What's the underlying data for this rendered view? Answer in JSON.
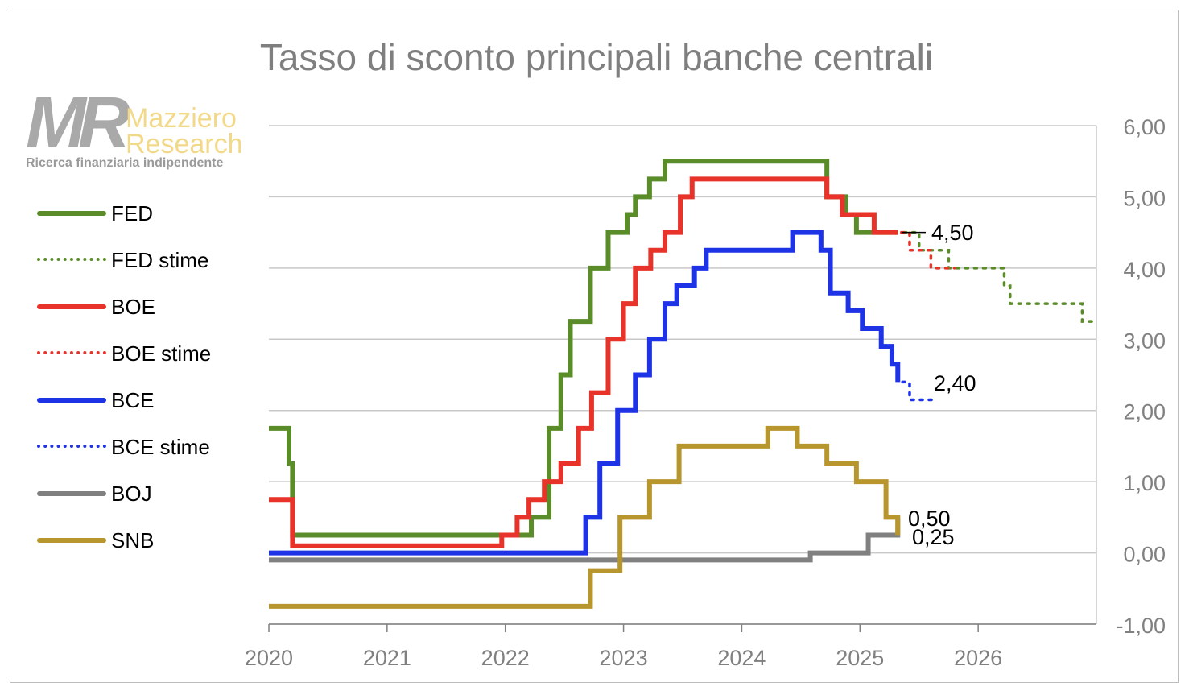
{
  "chart_data": {
    "type": "line",
    "title": "Tasso di sconto principali banche centrali",
    "xlabel": "",
    "ylabel": "",
    "xlim": [
      2020,
      2027
    ],
    "ylim": [
      -1,
      6
    ],
    "x_ticks": [
      "2020",
      "2021",
      "2022",
      "2023",
      "2024",
      "2025",
      "2026"
    ],
    "y_ticks": [
      "6,00",
      "5,00",
      "4,00",
      "3,00",
      "2,00",
      "1,00",
      "0,00",
      "-1,00"
    ],
    "y_axis_position": "right",
    "grid": "horizontal",
    "legend_position": "left",
    "series": [
      {
        "name": "FED",
        "color": "#5b8c2a",
        "style": "solid",
        "x": [
          2020.0,
          2020.17,
          2020.2,
          2022.22,
          2022.37,
          2022.47,
          2022.55,
          2022.72,
          2022.87,
          2023.03,
          2023.1,
          2023.22,
          2023.35,
          2023.57,
          2024.72,
          2024.88,
          2024.97,
          2025.32
        ],
        "y": [
          1.75,
          1.25,
          0.25,
          0.5,
          1.75,
          2.5,
          3.25,
          4.0,
          4.5,
          4.75,
          5.0,
          5.25,
          5.5,
          5.5,
          5.0,
          4.75,
          4.5,
          4.5
        ]
      },
      {
        "name": "FED stime",
        "color": "#5b8c2a",
        "style": "dotted",
        "x": [
          2025.37,
          2025.45,
          2025.5,
          2025.75,
          2025.83,
          2026.22,
          2026.27,
          2026.5,
          2026.75,
          2026.88,
          2026.98
        ],
        "y": [
          4.5,
          4.5,
          4.25,
          4.0,
          4.0,
          3.75,
          3.5,
          3.5,
          3.5,
          3.25,
          3.25
        ]
      },
      {
        "name": "BOE",
        "color": "#e8332a",
        "style": "solid",
        "x": [
          2020.0,
          2020.2,
          2020.23,
          2021.97,
          2022.1,
          2022.2,
          2022.33,
          2022.47,
          2022.62,
          2022.73,
          2022.87,
          2023.0,
          2023.1,
          2023.23,
          2023.35,
          2023.48,
          2023.58,
          2024.58,
          2024.72,
          2024.85,
          2024.97,
          2025.12,
          2025.32
        ],
        "y": [
          0.75,
          0.1,
          0.1,
          0.25,
          0.5,
          0.75,
          1.0,
          1.25,
          1.75,
          2.25,
          3.0,
          3.5,
          4.0,
          4.25,
          4.5,
          5.0,
          5.25,
          5.25,
          5.0,
          4.75,
          4.75,
          4.5,
          4.5
        ]
      },
      {
        "name": "BOE stime",
        "color": "#e8332a",
        "style": "dotted",
        "x": [
          2025.35,
          2025.42,
          2025.55,
          2025.6,
          2025.8
        ],
        "y": [
          4.5,
          4.25,
          4.25,
          4.0,
          4.0
        ]
      },
      {
        "name": "BCE",
        "color": "#1e32e6",
        "style": "solid",
        "x": [
          2020.0,
          2022.55,
          2022.68,
          2022.8,
          2022.95,
          2023.1,
          2023.22,
          2023.35,
          2023.45,
          2023.6,
          2023.7,
          2024.43,
          2024.67,
          2024.75,
          2024.9,
          2025.02,
          2025.18,
          2025.27,
          2025.32
        ],
        "y": [
          0.0,
          0.0,
          0.5,
          1.25,
          2.0,
          2.5,
          3.0,
          3.5,
          3.75,
          4.0,
          4.25,
          4.5,
          4.25,
          3.65,
          3.4,
          3.15,
          2.9,
          2.65,
          2.4
        ]
      },
      {
        "name": "BCE stime",
        "color": "#1e32e6",
        "style": "dotted",
        "x": [
          2025.36,
          2025.42,
          2025.62
        ],
        "y": [
          2.4,
          2.15,
          2.15
        ]
      },
      {
        "name": "BOJ",
        "color": "#808080",
        "style": "solid",
        "x": [
          2020.0,
          2024.22,
          2024.58,
          2025.07,
          2025.32
        ],
        "y": [
          -0.1,
          -0.1,
          0.0,
          0.25,
          0.5
        ]
      },
      {
        "name": "SNB",
        "color": "#b8962e",
        "style": "solid",
        "x": [
          2020.0,
          2022.47,
          2022.72,
          2022.97,
          2023.22,
          2023.47,
          2024.22,
          2024.47,
          2024.72,
          2024.97,
          2025.22,
          2025.32
        ],
        "y": [
          -0.75,
          -0.75,
          -0.25,
          0.5,
          1.0,
          1.5,
          1.75,
          1.5,
          1.25,
          1.0,
          0.5,
          0.25
        ]
      }
    ],
    "annotations": [
      {
        "text": "4,50",
        "x": 2025.33,
        "y": 4.5
      },
      {
        "text": "2,40",
        "x": 2025.33,
        "y": 2.4
      },
      {
        "text": "0,50",
        "x": 2025.33,
        "y": 0.5
      },
      {
        "text": "0,25",
        "x": 2025.33,
        "y": 0.25
      }
    ]
  },
  "logo": {
    "initials": "MR",
    "name_line1": "Mazziero",
    "name_line2": "Research",
    "tagline": "Ricerca finanziaria indipendente"
  }
}
